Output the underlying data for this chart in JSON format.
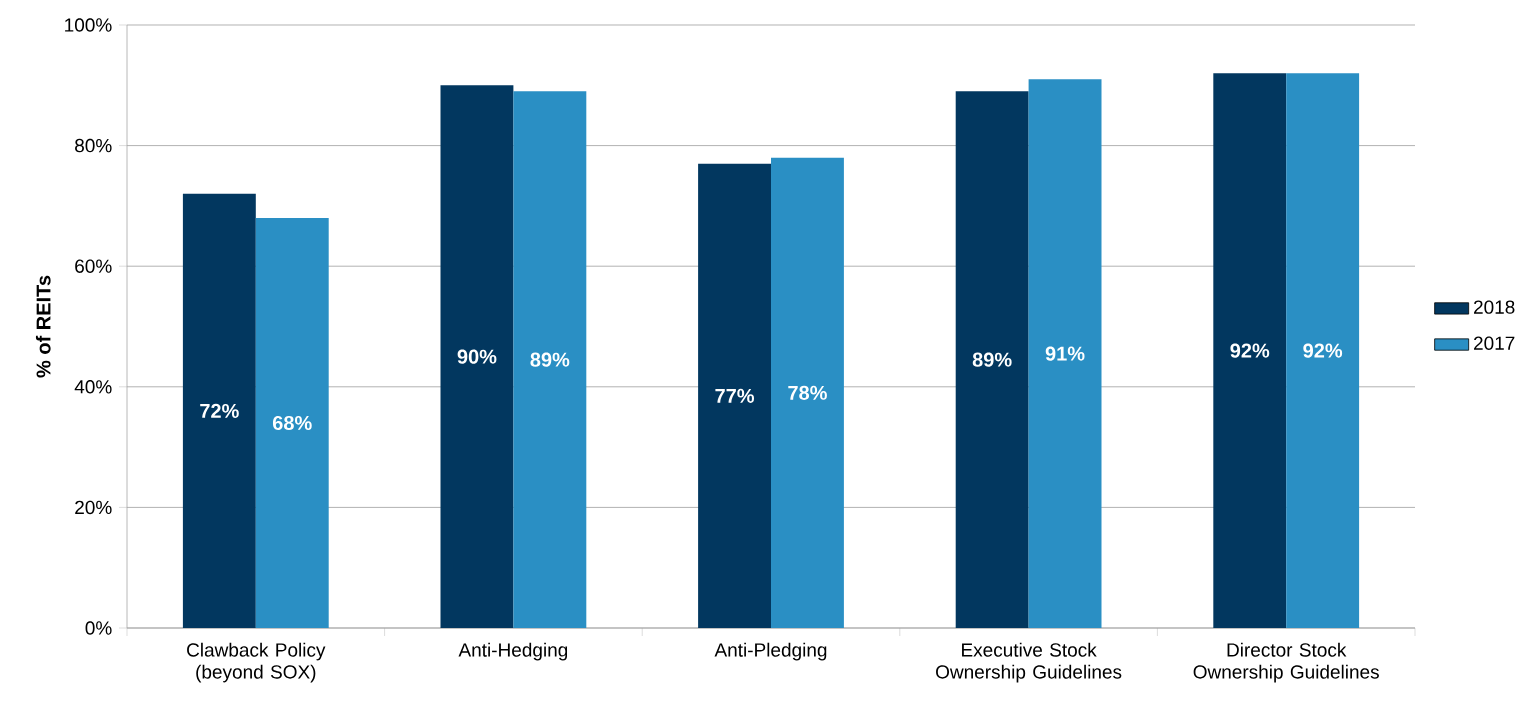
{
  "chart_data": {
    "type": "bar",
    "categories": [
      "Clawback Policy (beyond SOX)",
      "Anti-Hedging",
      "Anti-Pledging",
      "Executive Stock Ownership Guidelines",
      "Director Stock Ownership Guidelines"
    ],
    "series": [
      {
        "name": "2018",
        "color": "#02375f",
        "values": [
          72,
          90,
          77,
          89,
          92
        ],
        "value_labels": [
          "72%",
          "90%",
          "77%",
          "89%",
          "92%"
        ]
      },
      {
        "name": "2017",
        "color": "#2a8fc4",
        "values": [
          68,
          89,
          78,
          91,
          92
        ],
        "value_labels": [
          "68%",
          "89%",
          "78%",
          "91%",
          "92%"
        ]
      }
    ],
    "ylabel": "% of REITs",
    "ylim": [
      0,
      100
    ],
    "yticks": [
      {
        "value": 0,
        "label": "0%"
      },
      {
        "value": 20,
        "label": "20%"
      },
      {
        "value": 40,
        "label": "40%"
      },
      {
        "value": 60,
        "label": "60%"
      },
      {
        "value": 80,
        "label": "80%"
      },
      {
        "value": 100,
        "label": "100%"
      }
    ],
    "grid": "y",
    "legend": "right"
  }
}
